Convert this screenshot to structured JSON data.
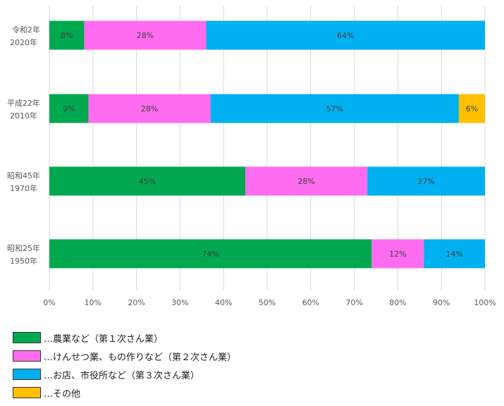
{
  "chart_data": {
    "type": "bar",
    "orientation": "horizontal",
    "stacked": true,
    "categories": [
      {
        "line1": "令和2年",
        "line2": "2020年"
      },
      {
        "line1": "平成22年",
        "line2": "2010年"
      },
      {
        "line1": "昭和45年",
        "line2": "1970年"
      },
      {
        "line1": "昭和25年",
        "line2": "1950年"
      }
    ],
    "series": [
      {
        "key": "primary",
        "color": "#00a84f",
        "values": [
          8,
          9,
          45,
          74
        ]
      },
      {
        "key": "secondary",
        "color": "#ff6cf0",
        "values": [
          28,
          28,
          28,
          12
        ]
      },
      {
        "key": "tertiary",
        "color": "#00b0f0",
        "values": [
          64,
          57,
          27,
          14
        ]
      },
      {
        "key": "other",
        "color": "#ffc000",
        "values": [
          0,
          6,
          0,
          0
        ]
      }
    ],
    "data_label_suffix": "%",
    "xlim": [
      0,
      100
    ],
    "xticks": [
      {
        "value": 0,
        "label": "0%"
      },
      {
        "value": 10,
        "label": "10%"
      },
      {
        "value": 20,
        "label": "20%"
      },
      {
        "value": 30,
        "label": "30%"
      },
      {
        "value": 40,
        "label": "40%"
      },
      {
        "value": 50,
        "label": "50%"
      },
      {
        "value": 60,
        "label": "60%"
      },
      {
        "value": 70,
        "label": "70%"
      },
      {
        "value": 80,
        "label": "80%"
      },
      {
        "value": 90,
        "label": "90%"
      },
      {
        "value": 100,
        "label": "100%"
      }
    ],
    "grid": true,
    "legend_position": "bottom-left"
  },
  "legend": {
    "items": [
      {
        "label": "…農業など（第１次さん業）",
        "color": "#00a84f"
      },
      {
        "label": "…けんせつ業、もの作りなど（第２次さん業）",
        "color": "#ff6cf0"
      },
      {
        "label": "…お店、市役所など（第３次さん業）",
        "color": "#00b0f0"
      },
      {
        "label": "…その他",
        "color": "#ffc000"
      }
    ]
  }
}
